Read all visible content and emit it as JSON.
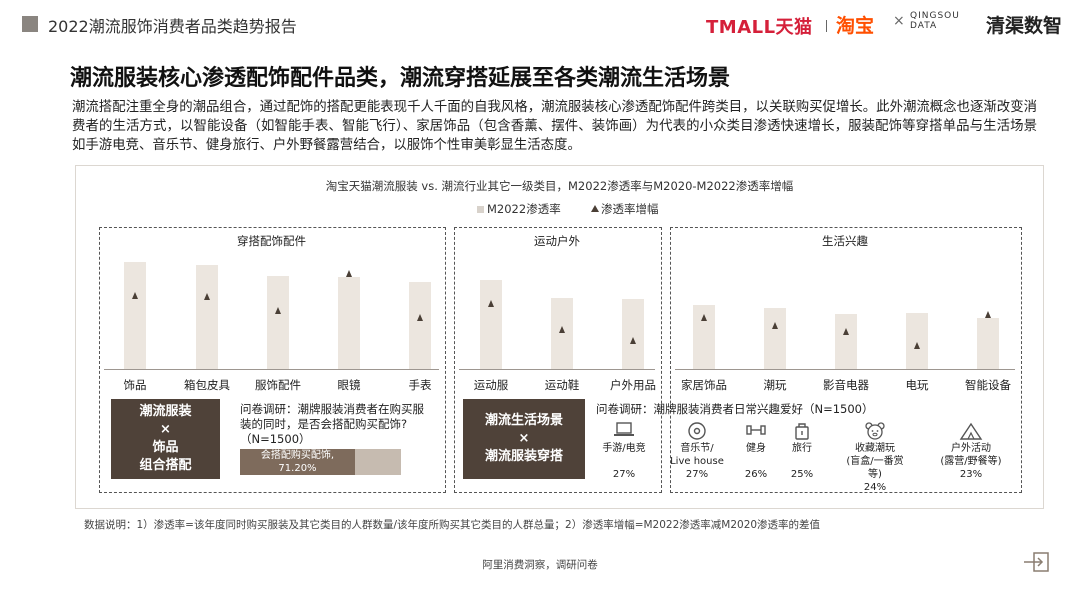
{
  "header": {
    "title": "2022潮流服饰消费者品类趋势报告",
    "logo_tmall": "TMALL天猫",
    "logo_taobao": "淘宝",
    "logo_times": "×",
    "logo_qingshu_en_1": "QINGSOU",
    "logo_qingshu_en_2": "DATA",
    "logo_qingshu_cn": "清渠数智"
  },
  "headline": "潮流服装核心渗透配饰配件品类，潮流穿搭延展至各类潮流生活场景",
  "paragraph": "潮流搭配注重全身的潮品组合，通过配饰的搭配更能表现千人千面的自我风格，潮流服装核心渗透配饰配件跨类目，以关联购买促增长。此外潮流概念也逐渐改变消费者的生活方式，以智能设备（如智能手表、智能飞行）、家居饰品（包含香薰、摆件、装饰画）为代表的小众类目渗透快速增长，服装配饰等穿搭单品与生活场景如手游电竞、音乐节、健身旅行、户外野餐露营结合，以服饰个性审美彰显生活态度。",
  "chart_data": {
    "type": "bar",
    "title": "淘宝天猫潮流服装 vs. 潮流行业其它一级类目，M2022渗透率与M2020-M2022渗透率增幅",
    "series": [
      {
        "name": "M2022渗透率",
        "kind": "bar"
      },
      {
        "name": "渗透率增幅",
        "kind": "marker"
      }
    ],
    "groups": [
      {
        "name": "穿搭配饰配件",
        "categories": [
          "饰品",
          "箱包皮具",
          "服饰配件",
          "眼镜",
          "手表"
        ]
      },
      {
        "name": "运动户外",
        "categories": [
          "运动服",
          "运动鞋",
          "户外用品"
        ]
      },
      {
        "name": "生活兴趣",
        "categories": [
          "家居饰品",
          "潮玩",
          "影音电器",
          "电玩",
          "智能设备"
        ]
      }
    ],
    "categories": [
      "饰品",
      "箱包皮具",
      "服饰配件",
      "眼镜",
      "手表",
      "运动服",
      "运动鞋",
      "户外用品",
      "家居饰品",
      "潮玩",
      "影音电器",
      "电玩",
      "智能设备"
    ],
    "bar_values": [
      100,
      97,
      87,
      86,
      81,
      83,
      66,
      65,
      60,
      57,
      51,
      52,
      48
    ],
    "marker_values": [
      66,
      64,
      47,
      92,
      38,
      56,
      23,
      10,
      38,
      28,
      21,
      4,
      42
    ],
    "value_scale_note": "",
    "ylim": [
      0,
      100
    ],
    "legend": "top-center"
  },
  "panel_left": {
    "box_line1": "潮流服装",
    "box_line2": "×",
    "box_line3": "饰品",
    "box_line4": "组合搭配",
    "survey_line1": "问卷调研：潮牌服装消费者在购买服",
    "survey_line2": "装的同时，是否会搭配购买配饰?",
    "survey_line3": "（N=1500）",
    "bar_label": "会搭配购买配饰,",
    "bar_value": "71.20%",
    "bar_fraction": 0.712
  },
  "panel_mid": {
    "box_line1": "潮流生活场景",
    "box_line2": "×",
    "box_line3": "潮流服装穿搭"
  },
  "panel_right": {
    "survey_title": "问卷调研：潮牌服装消费者日常兴趣爱好（N=1500）",
    "items": [
      {
        "label": "手游/电竞",
        "value": "27%",
        "icon": "laptop-icon"
      },
      {
        "label": "音乐节/",
        "label2": "Live house",
        "value": "27%",
        "icon": "music-disc-icon"
      },
      {
        "label": "健身",
        "value": "26%",
        "icon": "dumbbell-icon"
      },
      {
        "label": "旅行",
        "value": "25%",
        "icon": "suitcase-icon"
      },
      {
        "label": "收藏潮玩",
        "label2": "(盲盒/一番赏等)",
        "value": "24%",
        "icon": "bear-toy-icon"
      },
      {
        "label": "户外活动",
        "label2": "(露营/野餐等)",
        "value": "23%",
        "icon": "tent-icon"
      }
    ]
  },
  "note": "数据说明：1）渗透率=该年度同时购买服装及其它类目的人群数量/该年度所购买其它类目的人群总量；2）渗透率增幅=M2022渗透率减M2020渗透率的差值",
  "footer": "阿里消费洞察，调研问卷",
  "colors": {
    "bar": "#ece6df",
    "marker": "#4a3f36",
    "dark_box": "#4f4239",
    "tmall_red": "#d5203a",
    "taobao_orange": "#ff4f00"
  }
}
